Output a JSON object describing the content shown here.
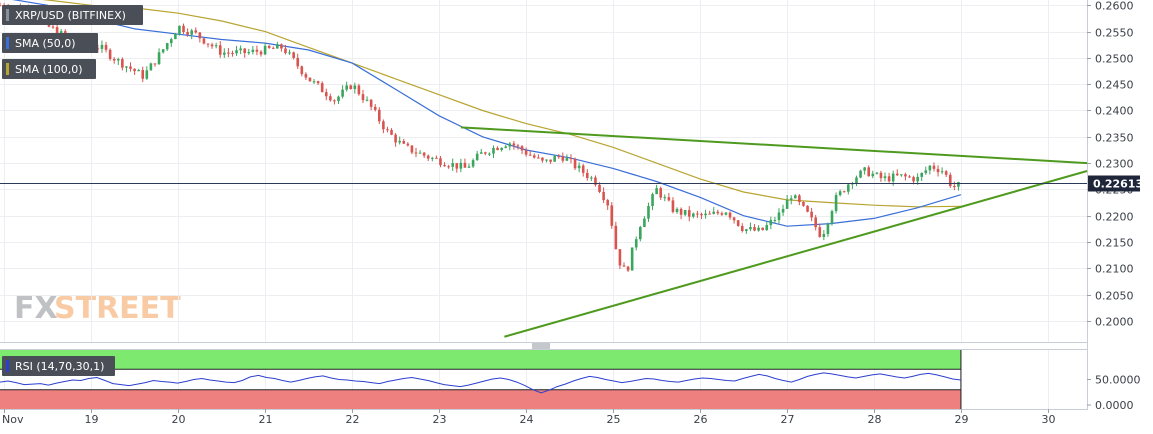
{
  "chart_data": [
    {
      "type": "candlestick",
      "title": "XRP/USD (BITFINEX)",
      "indicators": [
        {
          "name": "SMA (50,0)",
          "color": "#3a6fd8"
        },
        {
          "name": "SMA (100,0)",
          "color": "#b8a430"
        }
      ],
      "last_price": "0.22613",
      "last_price_value": 0.22613,
      "ylim": [
        0.196,
        0.261
      ],
      "y_ticks": [
        "0.2600",
        "0.2550",
        "0.2500",
        "0.2450",
        "0.2400",
        "0.2350",
        "0.2300",
        "0.2250",
        "0.2200",
        "0.2150",
        "0.2100",
        "0.2050",
        "0.2000"
      ],
      "x_ticks": [
        "Nov",
        "19",
        "20",
        "21",
        "22",
        "23",
        "24",
        "25",
        "26",
        "27",
        "28",
        "29",
        "30"
      ],
      "x_tick_days": [
        18.0,
        19,
        20,
        21,
        22,
        23,
        24,
        25,
        26,
        27,
        28,
        29,
        30
      ],
      "x_range_days": [
        17.95,
        30.45
      ],
      "price_path": [
        [
          17.95,
          0.26
        ],
        [
          18.3,
          0.259
        ],
        [
          18.5,
          0.256
        ],
        [
          18.8,
          0.253
        ],
        [
          19.1,
          0.252
        ],
        [
          19.3,
          0.2495
        ],
        [
          19.6,
          0.2465
        ],
        [
          19.8,
          0.251
        ],
        [
          20.0,
          0.256
        ],
        [
          20.2,
          0.2545
        ],
        [
          20.5,
          0.251
        ],
        [
          20.8,
          0.251
        ],
        [
          21.0,
          0.2515
        ],
        [
          21.2,
          0.252
        ],
        [
          21.5,
          0.246
        ],
        [
          21.8,
          0.242
        ],
        [
          22.0,
          0.245
        ],
        [
          22.2,
          0.241
        ],
        [
          22.4,
          0.236
        ],
        [
          22.6,
          0.233
        ],
        [
          22.9,
          0.231
        ],
        [
          23.1,
          0.23
        ],
        [
          23.3,
          0.229
        ],
        [
          23.5,
          0.232
        ],
        [
          23.8,
          0.234
        ],
        [
          24.0,
          0.232
        ],
        [
          24.2,
          0.23
        ],
        [
          24.4,
          0.2315
        ],
        [
          24.6,
          0.229
        ],
        [
          24.8,
          0.2265
        ],
        [
          24.95,
          0.222
        ],
        [
          25.05,
          0.212
        ],
        [
          25.15,
          0.209
        ],
        [
          25.3,
          0.218
        ],
        [
          25.5,
          0.225
        ],
        [
          25.7,
          0.221
        ],
        [
          25.9,
          0.22
        ],
        [
          26.1,
          0.22
        ],
        [
          26.3,
          0.221
        ],
        [
          26.5,
          0.2175
        ],
        [
          26.7,
          0.217
        ],
        [
          26.9,
          0.22
        ],
        [
          27.05,
          0.224
        ],
        [
          27.25,
          0.22
        ],
        [
          27.4,
          0.216
        ],
        [
          27.55,
          0.223
        ],
        [
          27.75,
          0.227
        ],
        [
          27.9,
          0.2285
        ],
        [
          28.1,
          0.227
        ],
        [
          28.3,
          0.2275
        ],
        [
          28.5,
          0.227
        ],
        [
          28.65,
          0.2295
        ],
        [
          28.8,
          0.2285
        ],
        [
          28.9,
          0.2255
        ],
        [
          29.0,
          0.2258
        ]
      ],
      "sma50": [
        [
          17.95,
          0.2615
        ],
        [
          18.5,
          0.26
        ],
        [
          19.0,
          0.2575
        ],
        [
          19.5,
          0.2555
        ],
        [
          20.0,
          0.2545
        ],
        [
          20.5,
          0.2535
        ],
        [
          21.0,
          0.2528
        ],
        [
          21.5,
          0.2515
        ],
        [
          22.0,
          0.249
        ],
        [
          22.5,
          0.244
        ],
        [
          23.0,
          0.239
        ],
        [
          23.5,
          0.235
        ],
        [
          24.0,
          0.2325
        ],
        [
          24.5,
          0.231
        ],
        [
          25.0,
          0.229
        ],
        [
          25.5,
          0.2265
        ],
        [
          26.0,
          0.2235
        ],
        [
          26.5,
          0.22
        ],
        [
          27.0,
          0.218
        ],
        [
          27.5,
          0.2185
        ],
        [
          28.0,
          0.2195
        ],
        [
          28.5,
          0.2215
        ],
        [
          29.0,
          0.224
        ]
      ],
      "sma100": [
        [
          17.95,
          0.262
        ],
        [
          18.5,
          0.261
        ],
        [
          19.0,
          0.26
        ],
        [
          19.5,
          0.2595
        ],
        [
          20.0,
          0.2585
        ],
        [
          20.5,
          0.257
        ],
        [
          21.0,
          0.255
        ],
        [
          21.5,
          0.252
        ],
        [
          22.0,
          0.249
        ],
        [
          22.5,
          0.246
        ],
        [
          23.0,
          0.243
        ],
        [
          23.5,
          0.24
        ],
        [
          24.0,
          0.2375
        ],
        [
          24.5,
          0.2355
        ],
        [
          25.0,
          0.233
        ],
        [
          25.5,
          0.23
        ],
        [
          26.0,
          0.227
        ],
        [
          26.5,
          0.2245
        ],
        [
          27.0,
          0.223
        ],
        [
          27.5,
          0.2225
        ],
        [
          28.0,
          0.222
        ],
        [
          28.5,
          0.2217
        ],
        [
          29.0,
          0.2218
        ]
      ],
      "trendlines": [
        {
          "name": "descending resistance",
          "color": "#4e9a1e",
          "from": [
            23.25,
            0.2368
          ],
          "to": [
            30.45,
            0.23
          ]
        },
        {
          "name": "ascending support",
          "color": "#4e9a1e",
          "from": [
            23.75,
            0.197
          ],
          "to": [
            30.45,
            0.2285
          ]
        }
      ]
    },
    {
      "type": "line",
      "title": "RSI (14,70,30,1)",
      "ylim": [
        0,
        100
      ],
      "y_ticks": [
        "50.0000",
        "0.0000"
      ],
      "overbought": 70,
      "oversold": 30,
      "series": [
        {
          "name": "RSI (14,70,30,1)",
          "color": "#2b3fcf",
          "values": [
            45,
            47,
            44,
            40,
            41,
            42,
            39,
            43,
            46,
            49,
            48,
            52,
            54,
            48,
            42,
            40,
            38,
            41,
            44,
            48,
            46,
            45,
            43,
            46,
            50,
            52,
            49,
            47,
            45,
            44,
            48,
            55,
            58,
            54,
            52,
            48,
            45,
            48,
            52,
            55,
            57,
            53,
            50,
            49,
            47,
            46,
            44,
            42,
            46,
            49,
            52,
            54,
            51,
            48,
            44,
            40,
            38,
            36,
            39,
            43,
            47,
            51,
            53,
            50,
            45,
            38,
            30,
            24,
            29,
            36,
            41,
            47,
            52,
            56,
            54,
            50,
            47,
            44,
            46,
            49,
            52,
            51,
            48,
            46,
            45,
            48,
            51,
            53,
            52,
            50,
            48,
            47,
            52,
            56,
            60,
            57,
            52,
            48,
            45,
            50,
            56,
            60,
            63,
            61,
            58,
            55,
            53,
            56,
            59,
            61,
            58,
            55,
            53,
            56,
            60,
            62,
            59,
            55,
            51,
            49
          ]
        }
      ]
    }
  ],
  "branding": {
    "fx": "FX",
    "street": "STREET"
  }
}
